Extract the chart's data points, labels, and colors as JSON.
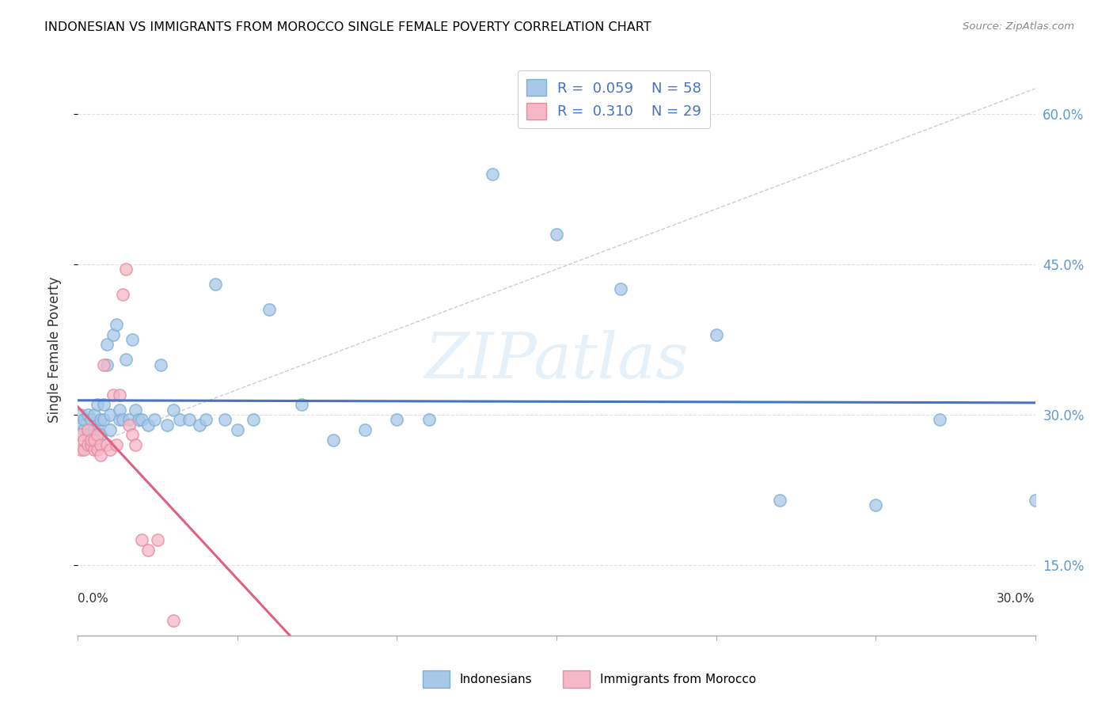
{
  "title": "INDONESIAN VS IMMIGRANTS FROM MOROCCO SINGLE FEMALE POVERTY CORRELATION CHART",
  "source": "Source: ZipAtlas.com",
  "ylabel": "Single Female Poverty",
  "watermark": "ZIPatlas",
  "blue_scatter_color": "#a8c8e8",
  "blue_scatter_edge": "#7bafd4",
  "pink_scatter_color": "#f4b8c8",
  "pink_scatter_edge": "#e88aa0",
  "blue_line_color": "#4472c4",
  "pink_line_color": "#e06080",
  "dashed_line_color": "#c8c8c8",
  "grid_color": "#e0e0e0",
  "right_tick_color": "#5b9bd5",
  "legend_r_color": "#000000",
  "legend_val_color": "#4472c4",
  "legend_n_val_color": "#4472c4",
  "indo_x": [
    0.001,
    0.001,
    0.002,
    0.002,
    0.003,
    0.003,
    0.004,
    0.004,
    0.005,
    0.005,
    0.006,
    0.006,
    0.007,
    0.007,
    0.008,
    0.008,
    0.009,
    0.009,
    0.01,
    0.01,
    0.011,
    0.012,
    0.013,
    0.013,
    0.014,
    0.015,
    0.016,
    0.017,
    0.018,
    0.019,
    0.02,
    0.022,
    0.024,
    0.026,
    0.028,
    0.03,
    0.032,
    0.035,
    0.038,
    0.04,
    0.043,
    0.046,
    0.05,
    0.055,
    0.06,
    0.07,
    0.08,
    0.09,
    0.1,
    0.11,
    0.13,
    0.15,
    0.17,
    0.2,
    0.22,
    0.25,
    0.27,
    0.3
  ],
  "indo_y": [
    0.29,
    0.3,
    0.285,
    0.295,
    0.28,
    0.3,
    0.27,
    0.295,
    0.285,
    0.3,
    0.29,
    0.31,
    0.295,
    0.28,
    0.31,
    0.295,
    0.37,
    0.35,
    0.285,
    0.3,
    0.38,
    0.39,
    0.295,
    0.305,
    0.295,
    0.355,
    0.295,
    0.375,
    0.305,
    0.295,
    0.295,
    0.29,
    0.295,
    0.35,
    0.29,
    0.305,
    0.295,
    0.295,
    0.29,
    0.295,
    0.43,
    0.295,
    0.285,
    0.295,
    0.405,
    0.31,
    0.275,
    0.285,
    0.295,
    0.295,
    0.54,
    0.48,
    0.425,
    0.38,
    0.215,
    0.21,
    0.295,
    0.215
  ],
  "moroc_x": [
    0.001,
    0.001,
    0.002,
    0.002,
    0.003,
    0.003,
    0.004,
    0.004,
    0.005,
    0.005,
    0.006,
    0.006,
    0.007,
    0.007,
    0.008,
    0.009,
    0.01,
    0.011,
    0.012,
    0.013,
    0.014,
    0.015,
    0.016,
    0.017,
    0.018,
    0.02,
    0.022,
    0.025,
    0.03
  ],
  "moroc_y": [
    0.265,
    0.28,
    0.265,
    0.275,
    0.27,
    0.285,
    0.27,
    0.275,
    0.265,
    0.275,
    0.28,
    0.265,
    0.27,
    0.26,
    0.35,
    0.27,
    0.265,
    0.32,
    0.27,
    0.32,
    0.42,
    0.445,
    0.29,
    0.28,
    0.27,
    0.175,
    0.165,
    0.175,
    0.095
  ],
  "xlim": [
    0.0,
    0.3
  ],
  "ylim": [
    0.08,
    0.65
  ],
  "yticks": [
    0.15,
    0.3,
    0.45,
    0.6
  ],
  "ytick_labels": [
    "15.0%",
    "30.0%",
    "45.0%",
    "60.0%"
  ],
  "xtick_labels_show": [
    "0.0%",
    "30.0%"
  ]
}
